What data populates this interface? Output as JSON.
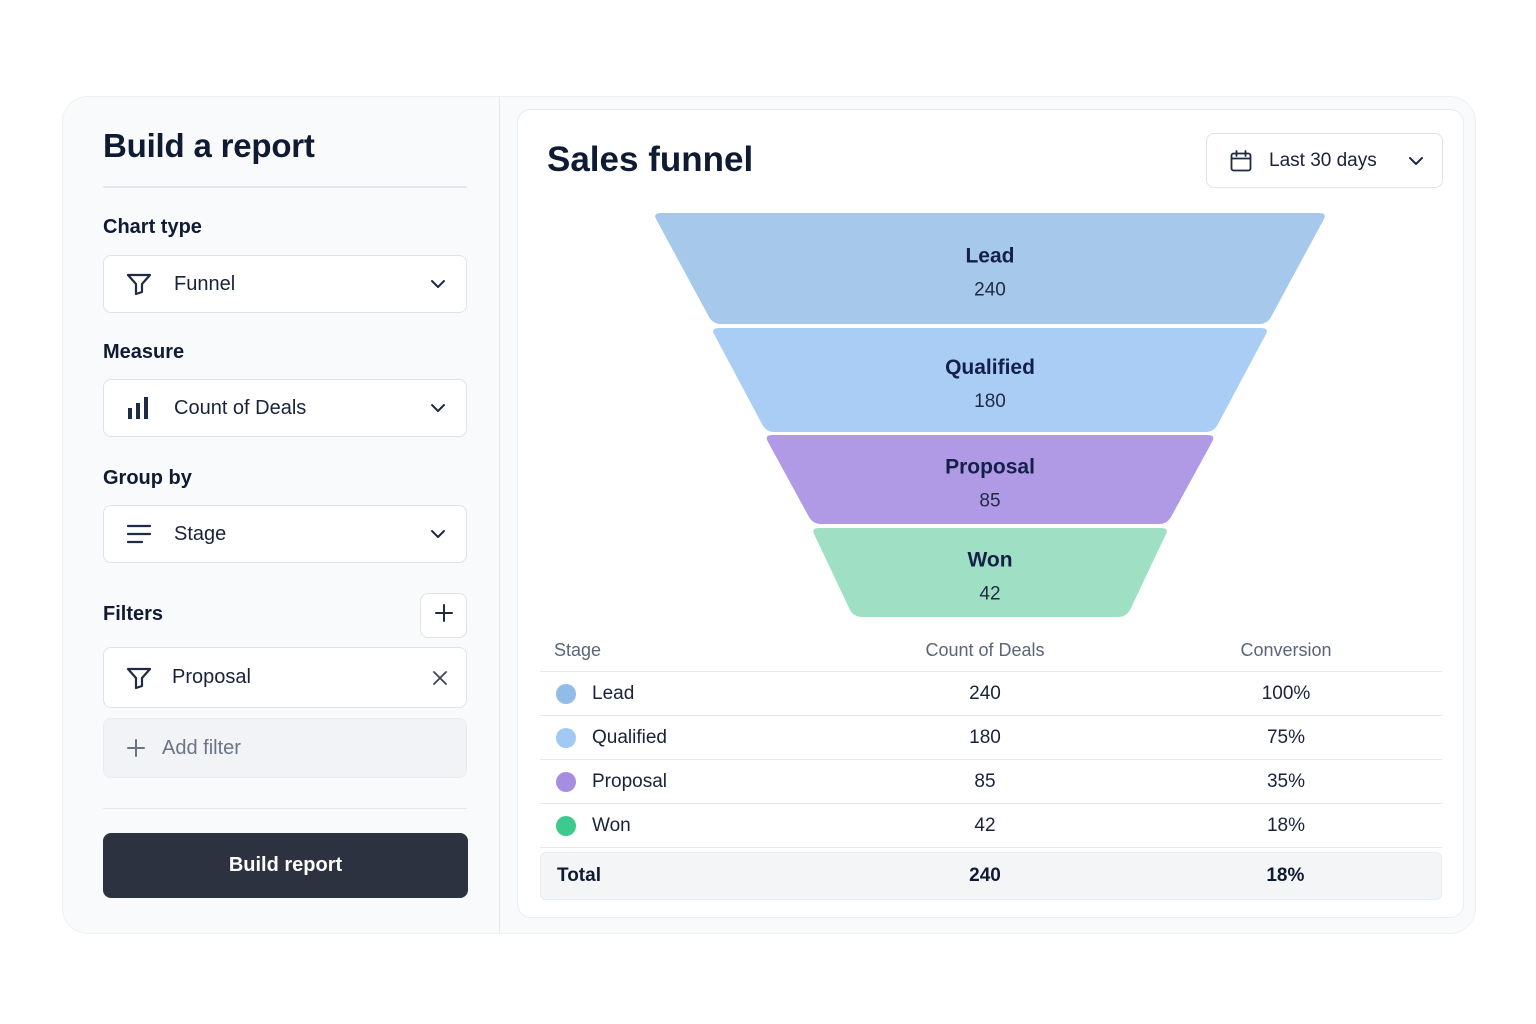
{
  "sidebar": {
    "title": "Build a report",
    "chart_type": {
      "label": "Chart type",
      "value": "Funnel",
      "icon": "funnel-icon"
    },
    "measure": {
      "label": "Measure",
      "value": "Count of Deals",
      "icon": "bar-chart-icon"
    },
    "group_by": {
      "label": "Group by",
      "value": "Stage",
      "icon": "list-icon"
    },
    "filters": {
      "label": "Filters",
      "items": [
        {
          "value": "Proposal",
          "icon": "funnel-icon"
        }
      ],
      "add_label": "Add filter"
    },
    "build_button": "Build report"
  },
  "main": {
    "title": "Sales funnel",
    "date_range": "Last 30 days"
  },
  "chart_data": {
    "type": "funnel",
    "categories": [
      "Lead",
      "Qualified",
      "Proposal",
      "Won"
    ],
    "values": [
      240,
      180,
      85,
      42
    ],
    "colors": [
      "#a6c8eb",
      "#a9cdf5",
      "#b09ae6",
      "#9fe0c4"
    ]
  },
  "table": {
    "headers": [
      "Stage",
      "Count of Deals",
      "Conversion"
    ],
    "rows": [
      {
        "stage": "Lead",
        "count": "240",
        "conversion": "100%",
        "color": "#92bbe6"
      },
      {
        "stage": "Qualified",
        "count": "180",
        "conversion": "75%",
        "color": "#a2c8f4"
      },
      {
        "stage": "Proposal",
        "count": "85",
        "conversion": "35%",
        "color": "#a68de0"
      },
      {
        "stage": "Won",
        "count": "42",
        "conversion": "18%",
        "color": "#3ec98f"
      }
    ],
    "total": {
      "label": "Total",
      "count": "240",
      "conversion": "18%"
    }
  }
}
